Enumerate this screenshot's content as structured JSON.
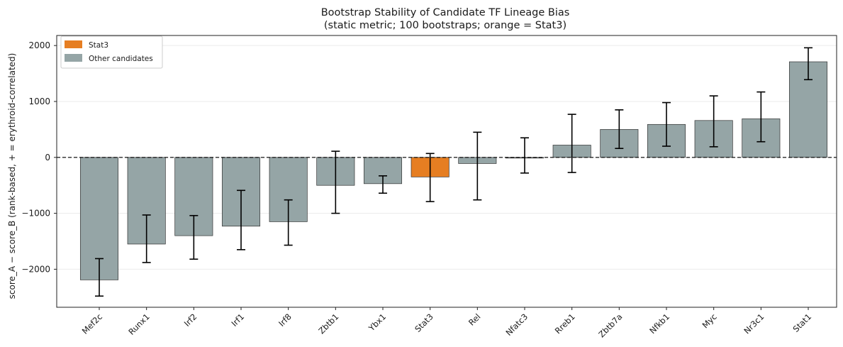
{
  "chart_data": {
    "type": "bar",
    "title": "Bootstrap Stability of Candidate TF Lineage Bias",
    "subtitle": "(static metric; 100 bootstraps; orange = Stat3)",
    "xlabel": "",
    "ylabel": "score_A − score_B (rank-based, + = erythroid-correlated)",
    "ylim": [
      -2680,
      2180
    ],
    "yticks": [
      -2000,
      -1000,
      0,
      1000,
      2000
    ],
    "ytick_labels": [
      "−2000",
      "−1000",
      "0",
      "1000",
      "2000"
    ],
    "categories": [
      "Mef2c",
      "Runx1",
      "Irf2",
      "Irf1",
      "Irf8",
      "Zbtb1",
      "Ybx1",
      "Stat3",
      "Rel",
      "Nfatc3",
      "Rreb1",
      "Zbtb7a",
      "Nfkb1",
      "Myc",
      "Nr3c1",
      "Stat1"
    ],
    "values": [
      -2190,
      -1550,
      -1400,
      -1230,
      -1150,
      -500,
      -470,
      -350,
      -110,
      -10,
      220,
      500,
      590,
      660,
      690,
      1710
    ],
    "error_low": [
      -2480,
      -1880,
      -1820,
      -1650,
      -1570,
      -1000,
      -640,
      -790,
      -760,
      -280,
      -270,
      160,
      200,
      190,
      280,
      1390
    ],
    "error_high": [
      -1810,
      -1030,
      -1040,
      -590,
      -760,
      110,
      -330,
      70,
      450,
      350,
      770,
      850,
      980,
      1100,
      1170,
      1960
    ],
    "highlight": "Stat3",
    "colors": {
      "highlight": "#e67e22",
      "other": "#95a5a6",
      "error": "#000000",
      "zero_line": "#000000"
    },
    "zero_line": {
      "y": 0,
      "style": "dashed"
    },
    "grid": {
      "y": true,
      "x": false
    },
    "legend": {
      "placement": "top-left",
      "entries": [
        {
          "label": "Stat3",
          "color": "#e67e22"
        },
        {
          "label": "Other candidates",
          "color": "#95a5a6"
        }
      ]
    }
  }
}
